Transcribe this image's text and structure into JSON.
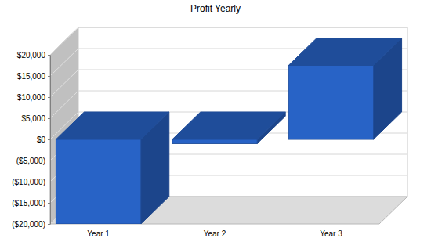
{
  "chart_data": {
    "type": "bar",
    "title": "Profit Yearly",
    "categories": [
      "Year 1",
      "Year 2",
      "Year 3"
    ],
    "values": [
      -20000,
      -1000,
      17500
    ],
    "color": "#2863c6",
    "ylim": [
      -20000,
      20000
    ],
    "yticks": [
      {
        "value": -20000,
        "label": "($20,000)"
      },
      {
        "value": -15000,
        "label": "($15,000)"
      },
      {
        "value": -10000,
        "label": "($10,000)"
      },
      {
        "value": -5000,
        "label": "($5,000)"
      },
      {
        "value": 0,
        "label": "$0"
      },
      {
        "value": 5000,
        "label": "$5,000"
      },
      {
        "value": 10000,
        "label": "$10,000"
      },
      {
        "value": 15000,
        "label": "$15,000"
      },
      {
        "value": 20000,
        "label": "$20,000"
      }
    ],
    "grid": true
  }
}
